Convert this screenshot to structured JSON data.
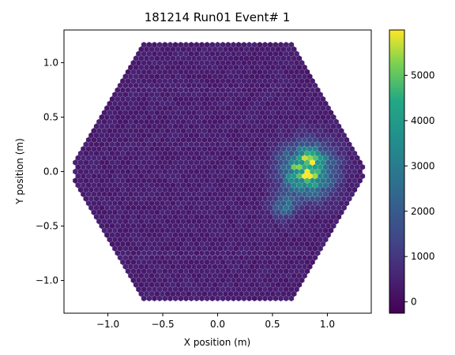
{
  "chart_data": {
    "type": "heatmap",
    "title": "181214 Run01 Event# 1",
    "xlabel": "X position (m)",
    "ylabel": "Y position (m)",
    "xlim": [
      -1.4,
      1.4
    ],
    "ylim": [
      -1.3,
      1.3
    ],
    "x_ticks": [
      -1.0,
      -0.5,
      0.0,
      0.5,
      1.0
    ],
    "x_tick_labels": [
      "−1.0",
      "−0.5",
      "0.0",
      "0.5",
      "1.0"
    ],
    "y_ticks": [
      -1.0,
      -0.5,
      0.0,
      0.5,
      1.0
    ],
    "y_tick_labels": [
      "−1.0",
      "−0.5",
      "0.0",
      "0.5",
      "1.0"
    ],
    "colorbar": {
      "colormap": "viridis",
      "range": [
        -250,
        6000
      ],
      "ticks": [
        0,
        1000,
        2000,
        3000,
        4000,
        5000
      ],
      "tick_labels": [
        "0",
        "1000",
        "2000",
        "3000",
        "4000",
        "5000"
      ]
    },
    "camera": {
      "shape": "hexagon",
      "circumradius_m": 1.18,
      "pixel_pitch_m": 0.048,
      "background_level": 400,
      "hotspots": [
        {
          "x": 0.82,
          "y": 0.02,
          "peak": 5500,
          "sigma": 0.15
        },
        {
          "x": 0.6,
          "y": -0.32,
          "peak": 1800,
          "sigma": 0.08
        }
      ]
    }
  }
}
